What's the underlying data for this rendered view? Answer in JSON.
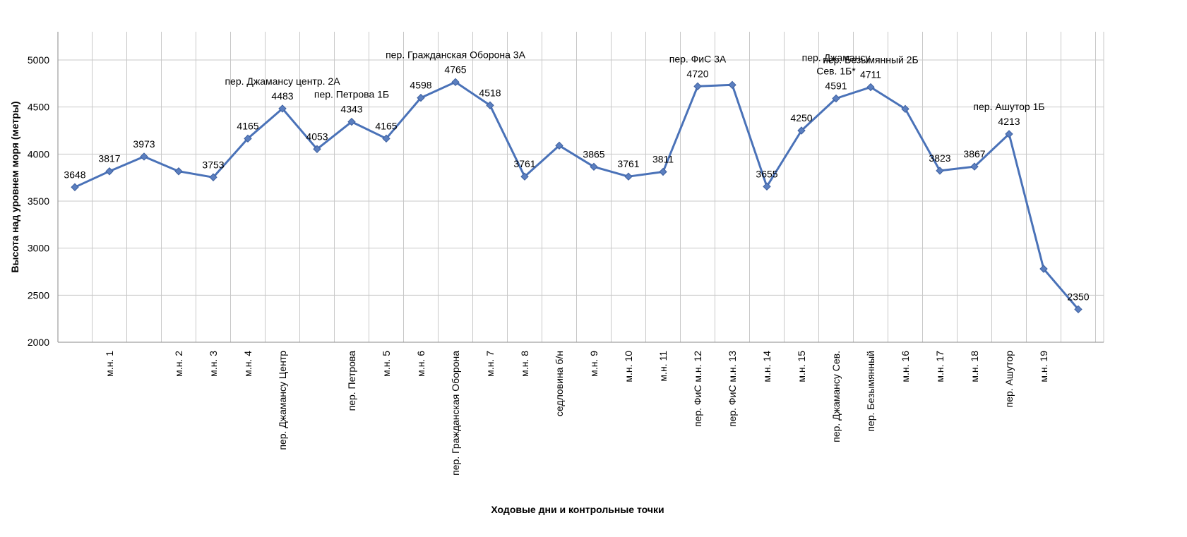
{
  "chart_data": {
    "type": "line",
    "title": "",
    "xlabel": "Ходовые дни и контрольные точки",
    "ylabel": "Высота над уровнем моря (метры)",
    "ylim": [
      2000,
      5300
    ],
    "yticks": [
      2000,
      2500,
      3000,
      3500,
      4000,
      4500,
      5000
    ],
    "grid": {
      "horizontal": true,
      "vertical": true
    },
    "legend": "none",
    "series": [
      {
        "name": "",
        "color": "#4a72b8",
        "marker_color": "#5b7fc0"
      }
    ],
    "points": [
      {
        "category": "",
        "value": 3648,
        "label": "3648",
        "annotation": ""
      },
      {
        "category": "м.н. 1",
        "value": 3817,
        "label": "3817",
        "annotation": ""
      },
      {
        "category": "",
        "value": 3973,
        "label": "3973",
        "annotation": ""
      },
      {
        "category": "м.н.  2",
        "value": 3817,
        "label": "",
        "annotation": ""
      },
      {
        "category": "м.н.  3",
        "value": 3753,
        "label": "3753",
        "annotation": ""
      },
      {
        "category": "м.н.  4",
        "value": 4165,
        "label": "4165",
        "annotation": ""
      },
      {
        "category": "пер. Джамансу Центр",
        "value": 4483,
        "label": "4483",
        "annotation": "пер. Джамансу центр. 2А"
      },
      {
        "category": "",
        "value": 4053,
        "label": "4053",
        "annotation": ""
      },
      {
        "category": "пер. Петрова",
        "value": 4343,
        "label": "4343",
        "annotation": "пер. Петрова 1Б"
      },
      {
        "category": "м.н.  5",
        "value": 4165,
        "label": "4165",
        "annotation": ""
      },
      {
        "category": "м.н.  6",
        "value": 4598,
        "label": "4598",
        "annotation": ""
      },
      {
        "category": "пер. Гражданская Оборона",
        "value": 4765,
        "label": "4765",
        "annotation": "пер. Гражданская Оборона 3А"
      },
      {
        "category": "м.н.  7",
        "value": 4518,
        "label": "4518",
        "annotation": ""
      },
      {
        "category": "м.н.  8",
        "value": 3761,
        "label": "3761",
        "annotation": ""
      },
      {
        "category": "седловина б/н",
        "value": 4090,
        "label": "",
        "annotation": ""
      },
      {
        "category": "м.н.  9",
        "value": 3865,
        "label": "3865",
        "annotation": ""
      },
      {
        "category": "м.н.  10",
        "value": 3761,
        "label": "3761",
        "annotation": ""
      },
      {
        "category": "м.н.  11",
        "value": 3811,
        "label": "3811",
        "annotation": ""
      },
      {
        "category": "пер. ФиС м.н. 12",
        "value": 4720,
        "label": "4720",
        "annotation": "пер. ФиС 3А"
      },
      {
        "category": "пер. ФиС м.н. 13",
        "value": 4735,
        "label": "",
        "annotation": ""
      },
      {
        "category": "м.н.  14",
        "value": 3655,
        "label": "3655",
        "annotation": ""
      },
      {
        "category": "м.н.  15",
        "value": 4250,
        "label": "4250",
        "annotation": ""
      },
      {
        "category": "пер. Джамансу Сев.",
        "value": 4591,
        "label": "4591",
        "annotation": "пер. Джамансу\nСев. 1Б*"
      },
      {
        "category": "пер. Безымянный",
        "value": 4711,
        "label": "4711",
        "annotation": "пер. Безымянный 2Б"
      },
      {
        "category": "м.н.  16",
        "value": 4480,
        "label": "",
        "annotation": ""
      },
      {
        "category": "м.н.  17",
        "value": 3823,
        "label": "3823",
        "annotation": ""
      },
      {
        "category": "м.н.  18",
        "value": 3867,
        "label": "3867",
        "annotation": ""
      },
      {
        "category": "пер. Ашутор",
        "value": 4213,
        "label": "4213",
        "annotation": "пер. Ашутор 1Б"
      },
      {
        "category": "м.н.  19",
        "value": 2780,
        "label": "",
        "annotation": ""
      },
      {
        "category": "",
        "value": 2350,
        "label": "2350",
        "annotation": ""
      }
    ]
  }
}
